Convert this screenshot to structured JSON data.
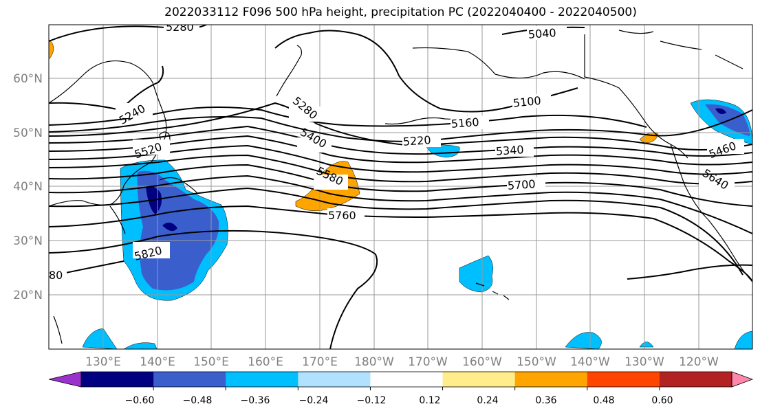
{
  "title": "2022033112 F096 500 hPa height, precipitation PC (2022040400 - 2022040500)",
  "map": {
    "lat_labels": [
      "60°N",
      "50°N",
      "40°N",
      "30°N",
      "20°N"
    ],
    "lon_labels": [
      "130°E",
      "140°E",
      "150°E",
      "160°E",
      "170°E",
      "180°W",
      "170°W",
      "160°W",
      "150°W",
      "140°W",
      "130°W",
      "120°W"
    ],
    "contour_labels": [
      "5280",
      "5040",
      "5240",
      "5100",
      "5280",
      "5160",
      "5520",
      "5220",
      "5460",
      "5400",
      "5340",
      "5580",
      "5700",
      "5640",
      "5760",
      "5820",
      "80"
    ]
  },
  "colorbar": {
    "ticks": [
      "−0.60",
      "−0.48",
      "−0.36",
      "−0.24",
      "−0.12",
      "0.12",
      "0.24",
      "0.36",
      "0.48",
      "0.60"
    ],
    "colors": [
      "#9933cc",
      "#000080",
      "#3a5fcd",
      "#00bfff",
      "#b0e2ff",
      "#ffffff",
      "#ffec8b",
      "#ffa500",
      "#ff4500",
      "#b22222",
      "#ff88aa"
    ]
  }
}
